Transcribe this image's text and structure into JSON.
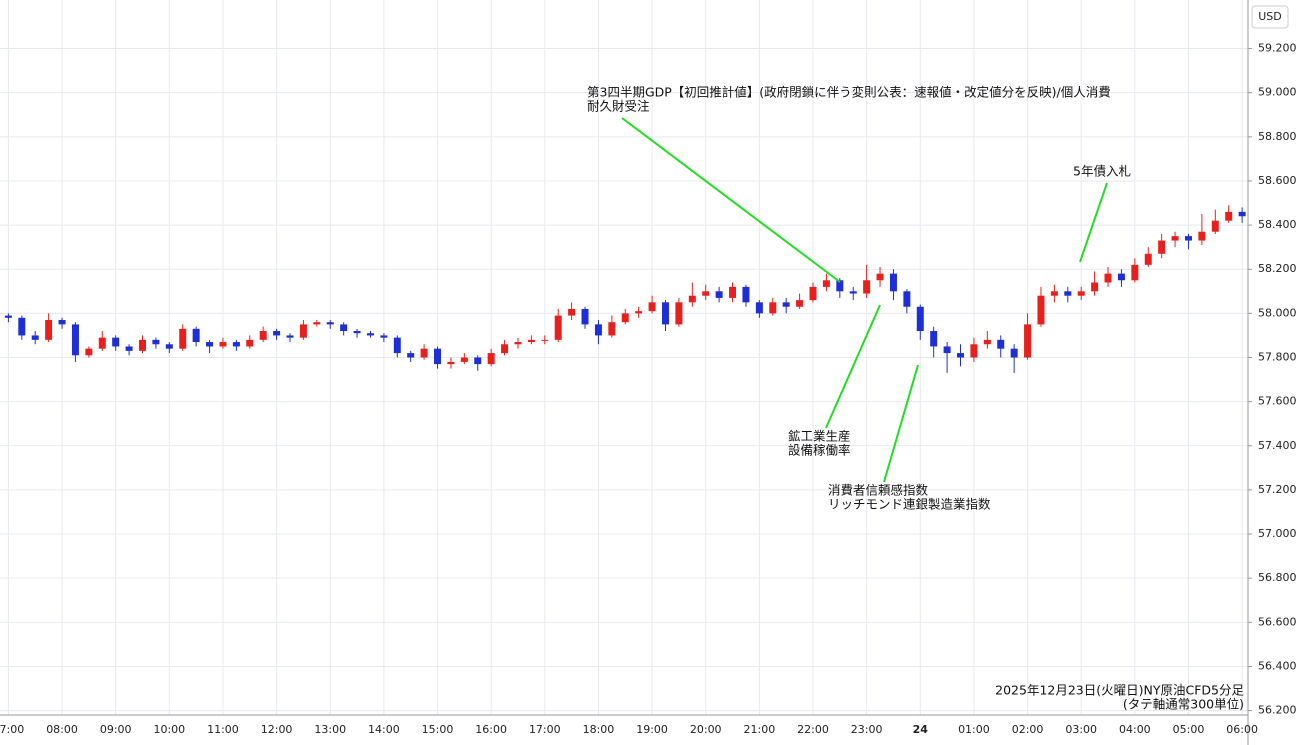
{
  "chart_data": {
    "type": "candlestick",
    "currency": "USD",
    "footer": [
      "2025年12月23日(火曜日)NY原油CFD5分足",
      "(タテ軸通常300単位)"
    ],
    "up_color": "#e8201d",
    "down_color": "#1f2fd6",
    "grid": true,
    "ylim": [
      56.18,
      59.42
    ],
    "yticks": [
      {
        "value": 56.2,
        "label": "56.200"
      },
      {
        "value": 56.4,
        "label": "56.400"
      },
      {
        "value": 56.6,
        "label": "56.600"
      },
      {
        "value": 56.8,
        "label": "56.800"
      },
      {
        "value": 57.0,
        "label": "57.000"
      },
      {
        "value": 57.2,
        "label": "57.200"
      },
      {
        "value": 57.4,
        "label": "57.400"
      },
      {
        "value": 57.6,
        "label": "57.600"
      },
      {
        "value": 57.8,
        "label": "57.800"
      },
      {
        "value": 58.0,
        "label": "58.000"
      },
      {
        "value": 58.2,
        "label": "58.200"
      },
      {
        "value": 58.4,
        "label": "58.400"
      },
      {
        "value": 58.6,
        "label": "58.600"
      },
      {
        "value": 58.8,
        "label": "58.800"
      },
      {
        "value": 59.0,
        "label": "59.000"
      },
      {
        "value": 59.2,
        "label": "59.200"
      }
    ],
    "xticks": [
      "07:00",
      "08:00",
      "09:00",
      "10:00",
      "11:00",
      "12:00",
      "13:00",
      "14:00",
      "15:00",
      "16:00",
      "17:00",
      "18:00",
      "19:00",
      "20:00",
      "21:00",
      "22:00",
      "23:00",
      {
        "value": "00:00",
        "label": "24"
      },
      "01:00",
      "02:00",
      "03:00",
      "04:00",
      "05:00",
      "06:00"
    ],
    "x": [
      "07:00",
      "07:15",
      "07:30",
      "07:45",
      "08:00",
      "08:15",
      "08:30",
      "08:45",
      "09:00",
      "09:15",
      "09:30",
      "09:45",
      "10:00",
      "10:15",
      "10:30",
      "10:45",
      "11:00",
      "11:15",
      "11:30",
      "11:45",
      "12:00",
      "12:15",
      "12:30",
      "12:45",
      "13:00",
      "13:15",
      "13:30",
      "13:45",
      "14:00",
      "14:15",
      "14:30",
      "14:45",
      "15:00",
      "15:15",
      "15:30",
      "15:45",
      "16:00",
      "16:15",
      "16:30",
      "16:45",
      "17:00",
      "17:15",
      "17:30",
      "17:45",
      "18:00",
      "18:15",
      "18:30",
      "18:45",
      "19:00",
      "19:15",
      "19:30",
      "19:45",
      "20:00",
      "20:15",
      "20:30",
      "20:45",
      "21:00",
      "21:15",
      "21:30",
      "21:45",
      "22:00",
      "22:15",
      "22:30",
      "22:45",
      "23:00",
      "23:15",
      "23:30",
      "23:45",
      "00:00",
      "00:15",
      "00:30",
      "00:45",
      "01:00",
      "01:15",
      "01:30",
      "01:45",
      "02:00",
      "02:15",
      "02:30",
      "02:45",
      "03:00",
      "03:15",
      "03:30",
      "03:45",
      "04:00",
      "04:15",
      "04:30",
      "04:45",
      "05:00",
      "05:15",
      "05:30",
      "05:45",
      "06:00"
    ],
    "open": [
      57.99,
      57.98,
      57.9,
      57.88,
      57.97,
      57.95,
      57.81,
      57.84,
      57.89,
      57.85,
      57.83,
      57.88,
      57.86,
      57.84,
      57.93,
      57.87,
      57.85,
      57.87,
      57.85,
      57.88,
      57.92,
      57.9,
      57.89,
      57.95,
      57.96,
      57.95,
      57.92,
      57.91,
      57.9,
      57.89,
      57.82,
      57.8,
      57.84,
      57.77,
      57.78,
      57.8,
      57.77,
      57.82,
      57.86,
      57.87,
      57.88,
      57.88,
      57.99,
      58.02,
      57.95,
      57.9,
      57.96,
      58.0,
      58.01,
      58.05,
      57.95,
      58.05,
      58.08,
      58.1,
      58.07,
      58.12,
      58.05,
      58.0,
      58.05,
      58.03,
      58.06,
      58.12,
      58.15,
      58.1,
      58.09,
      58.15,
      58.18,
      58.1,
      58.03,
      57.92,
      57.85,
      57.82,
      57.8,
      57.86,
      57.88,
      57.84,
      57.8,
      57.95,
      58.08,
      58.1,
      58.08,
      58.1,
      58.14,
      58.18,
      58.15,
      58.22,
      58.27,
      58.33,
      58.35,
      58.33,
      58.37,
      58.42,
      58.46
    ],
    "high": [
      58.0,
      57.99,
      57.92,
      58.0,
      57.98,
      57.96,
      57.85,
      57.92,
      57.9,
      57.86,
      57.9,
      57.89,
      57.87,
      57.95,
      57.94,
      57.88,
      57.89,
      57.88,
      57.9,
      57.94,
      57.93,
      57.91,
      57.97,
      57.97,
      57.97,
      57.96,
      57.93,
      57.92,
      57.91,
      57.9,
      57.83,
      57.86,
      57.85,
      57.8,
      57.82,
      57.81,
      57.84,
      57.88,
      57.89,
      57.9,
      57.9,
      58.02,
      58.05,
      58.03,
      57.97,
      57.99,
      58.02,
      58.03,
      58.08,
      58.06,
      58.07,
      58.14,
      58.13,
      58.12,
      58.14,
      58.13,
      58.06,
      58.07,
      58.07,
      58.09,
      58.14,
      58.18,
      58.16,
      58.12,
      58.22,
      58.21,
      58.2,
      58.11,
      58.04,
      57.94,
      57.87,
      57.86,
      57.89,
      57.92,
      57.9,
      57.86,
      58.0,
      58.12,
      58.13,
      58.12,
      58.12,
      58.19,
      58.21,
      58.2,
      58.25,
      58.3,
      58.36,
      58.37,
      58.36,
      58.45,
      58.47,
      58.49,
      58.48
    ],
    "low": [
      57.96,
      57.88,
      57.86,
      57.87,
      57.93,
      57.78,
      57.8,
      57.83,
      57.83,
      57.81,
      57.82,
      57.84,
      57.82,
      57.83,
      57.85,
      57.82,
      57.84,
      57.83,
      57.84,
      57.87,
      57.88,
      57.87,
      57.88,
      57.94,
      57.93,
      57.9,
      57.89,
      57.89,
      57.87,
      57.8,
      57.78,
      57.79,
      57.75,
      57.75,
      57.77,
      57.74,
      57.76,
      57.81,
      57.84,
      57.86,
      57.86,
      57.87,
      57.97,
      57.93,
      57.86,
      57.89,
      57.95,
      57.98,
      58.0,
      57.92,
      57.94,
      58.03,
      58.06,
      58.05,
      58.05,
      58.03,
      57.98,
      57.99,
      58.0,
      58.02,
      58.05,
      58.1,
      58.07,
      58.06,
      58.07,
      58.12,
      58.06,
      58.0,
      57.88,
      57.8,
      57.73,
      57.76,
      57.78,
      57.84,
      57.8,
      57.73,
      57.79,
      57.94,
      58.05,
      58.05,
      58.06,
      58.08,
      58.12,
      58.12,
      58.14,
      58.21,
      58.25,
      58.3,
      58.29,
      58.31,
      58.36,
      58.41,
      58.41
    ],
    "close": [
      57.98,
      57.9,
      57.88,
      57.97,
      57.95,
      57.81,
      57.84,
      57.89,
      57.85,
      57.83,
      57.88,
      57.86,
      57.84,
      57.93,
      57.87,
      57.85,
      57.87,
      57.85,
      57.88,
      57.92,
      57.9,
      57.89,
      57.95,
      57.96,
      57.95,
      57.92,
      57.91,
      57.9,
      57.89,
      57.82,
      57.8,
      57.84,
      57.77,
      57.78,
      57.8,
      57.77,
      57.82,
      57.86,
      57.87,
      57.88,
      57.88,
      57.99,
      58.02,
      57.95,
      57.9,
      57.96,
      58.0,
      58.01,
      58.05,
      57.95,
      58.05,
      58.08,
      58.1,
      58.07,
      58.12,
      58.05,
      58.0,
      58.05,
      58.03,
      58.06,
      58.12,
      58.15,
      58.1,
      58.09,
      58.15,
      58.18,
      58.1,
      58.03,
      57.92,
      57.85,
      57.82,
      57.8,
      57.86,
      57.88,
      57.84,
      57.8,
      57.95,
      58.08,
      58.1,
      58.08,
      58.1,
      58.14,
      58.18,
      58.15,
      58.22,
      58.27,
      58.33,
      58.35,
      58.33,
      58.37,
      58.42,
      58.46,
      58.44
    ],
    "annotations": [
      {
        "lines": [
          "第3四半期GDP【初回推計値】(政府閉鎖に伴う変則公表：速報値・改定値分を反映)/個人消費",
          "耐久財受注"
        ]
      },
      {
        "lines": [
          "鉱工業生産",
          "設備稼働率"
        ]
      },
      {
        "lines": [
          "消費者信頼感指数",
          "リッチモンド連銀製造業指数"
        ]
      },
      {
        "lines": [
          "5年債入札"
        ]
      }
    ]
  }
}
